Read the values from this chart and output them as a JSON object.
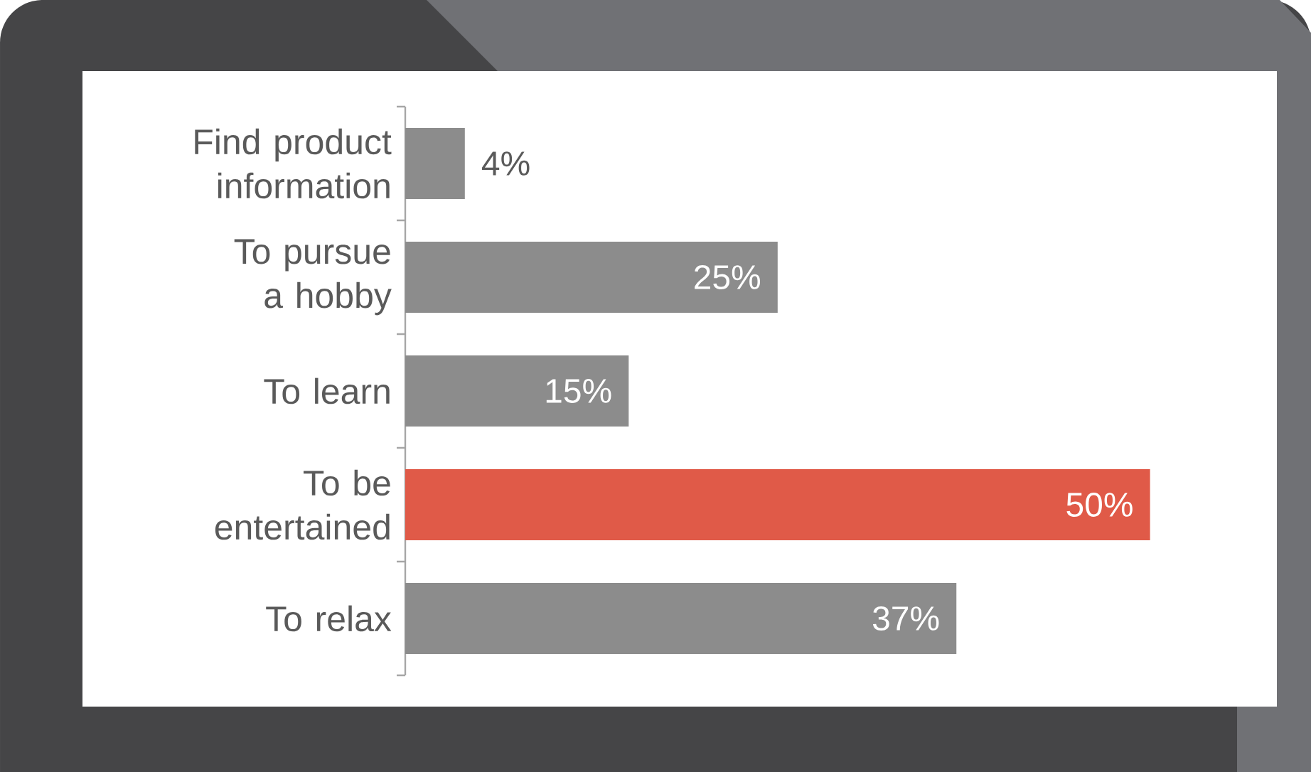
{
  "chart_data": {
    "type": "bar",
    "orientation": "horizontal",
    "categories": [
      "Find product information",
      "To pursue a hobby",
      "To learn",
      "To be entertained",
      "To relax"
    ],
    "values": [
      4,
      25,
      15,
      50,
      37
    ],
    "colors": [
      "#8c8c8c",
      "#8c8c8c",
      "#8c8c8c",
      "#e05a48",
      "#8c8c8c"
    ],
    "value_labels": [
      "4%",
      "25%",
      "15%",
      "50%",
      "37%"
    ]
  }
}
